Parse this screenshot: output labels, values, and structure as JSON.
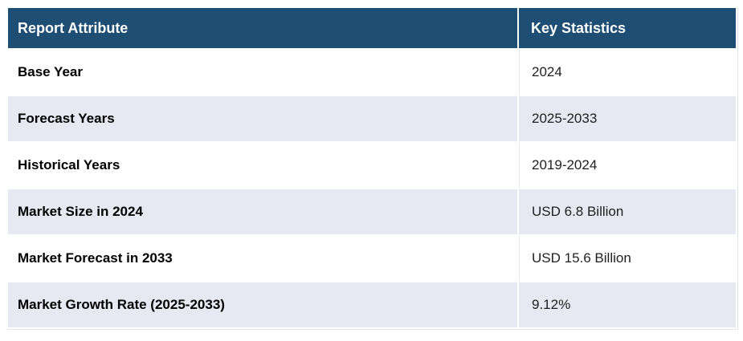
{
  "chart_data": {
    "type": "table",
    "columns": [
      "Report Attribute",
      "Key Statistics"
    ],
    "rows": [
      [
        "Base Year",
        "2024"
      ],
      [
        "Forecast Years",
        "2025-2033"
      ],
      [
        "Historical Years",
        "2019-2024"
      ],
      [
        "Market Size in 2024",
        "USD 6.8 Billion"
      ],
      [
        "Market Forecast in 2033",
        "USD 15.6 Billion"
      ],
      [
        "Market Growth Rate (2025-2033)",
        "9.12%"
      ]
    ]
  },
  "colors": {
    "header_bg": "#1F4E74",
    "header_text": "#FFFFFF",
    "row_bg": "#FFFFFF",
    "row_alt_bg": "#E6E8F2",
    "cell_gap": "#FFFFFF",
    "subtle_border": "#E7E7EE",
    "attribute_text": "#000000",
    "value_text": "#1F1F1F"
  }
}
